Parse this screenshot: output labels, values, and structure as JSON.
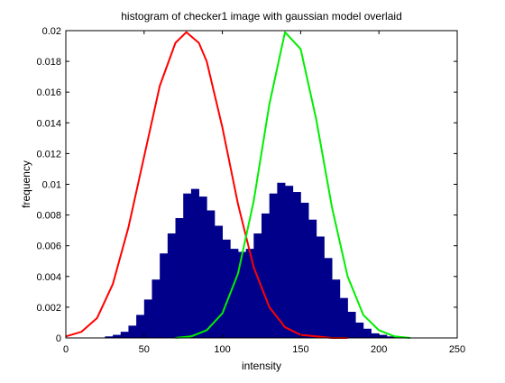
{
  "chart_data": {
    "type": "bar",
    "title": "histogram of checker1 image with gaussian model overlaid",
    "xlabel": "intensity",
    "ylabel": "frequency",
    "xlim": [
      0,
      250
    ],
    "ylim": [
      0,
      0.02
    ],
    "xticks": [
      "0",
      "50",
      "100",
      "150",
      "200",
      "250"
    ],
    "yticks": [
      "0",
      "0.002",
      "0.004",
      "0.006",
      "0.008",
      "0.01",
      "0.012",
      "0.014",
      "0.016",
      "0.018",
      "0.02"
    ],
    "grid": false,
    "legend": "none",
    "histogram": {
      "name": "",
      "color": "#00008b",
      "bins": [
        {
          "x": 0,
          "y": 0
        },
        {
          "x": 5,
          "y": 0
        },
        {
          "x": 10,
          "y": 0
        },
        {
          "x": 15,
          "y": 0
        },
        {
          "x": 20,
          "y": 0
        },
        {
          "x": 25,
          "y": 0.0001
        },
        {
          "x": 30,
          "y": 0.0002
        },
        {
          "x": 35,
          "y": 0.0004
        },
        {
          "x": 40,
          "y": 0.0008
        },
        {
          "x": 45,
          "y": 0.0015
        },
        {
          "x": 50,
          "y": 0.0025
        },
        {
          "x": 55,
          "y": 0.0038
        },
        {
          "x": 60,
          "y": 0.0055
        },
        {
          "x": 65,
          "y": 0.0068
        },
        {
          "x": 70,
          "y": 0.0078
        },
        {
          "x": 75,
          "y": 0.0094
        },
        {
          "x": 80,
          "y": 0.0097
        },
        {
          "x": 85,
          "y": 0.0092
        },
        {
          "x": 90,
          "y": 0.0083
        },
        {
          "x": 95,
          "y": 0.0073
        },
        {
          "x": 100,
          "y": 0.0064
        },
        {
          "x": 105,
          "y": 0.0058
        },
        {
          "x": 110,
          "y": 0.0056
        },
        {
          "x": 115,
          "y": 0.0058
        },
        {
          "x": 120,
          "y": 0.0068
        },
        {
          "x": 125,
          "y": 0.0081
        },
        {
          "x": 130,
          "y": 0.0094
        },
        {
          "x": 135,
          "y": 0.0101
        },
        {
          "x": 140,
          "y": 0.0099
        },
        {
          "x": 145,
          "y": 0.0095
        },
        {
          "x": 150,
          "y": 0.0088
        },
        {
          "x": 155,
          "y": 0.0077
        },
        {
          "x": 160,
          "y": 0.0066
        },
        {
          "x": 165,
          "y": 0.0052
        },
        {
          "x": 170,
          "y": 0.0038
        },
        {
          "x": 175,
          "y": 0.0026
        },
        {
          "x": 180,
          "y": 0.0017
        },
        {
          "x": 185,
          "y": 0.001
        },
        {
          "x": 190,
          "y": 0.0006
        },
        {
          "x": 195,
          "y": 0.0003
        },
        {
          "x": 200,
          "y": 0.0002
        },
        {
          "x": 205,
          "y": 0.0001
        },
        {
          "x": 210,
          "y": 5e-05
        },
        {
          "x": 215,
          "y": 0
        }
      ],
      "bin_width": 5
    },
    "series": [
      {
        "type": "line",
        "color": "#ff0000",
        "x": [
          0,
          10,
          20,
          30,
          40,
          50,
          60,
          70,
          77,
          85,
          90,
          100,
          110,
          120,
          130,
          140,
          150,
          160,
          170,
          180
        ],
        "y": [
          0.0001,
          0.0004,
          0.0013,
          0.0035,
          0.0072,
          0.0118,
          0.0164,
          0.0192,
          0.0199,
          0.0192,
          0.018,
          0.0137,
          0.0087,
          0.0046,
          0.002,
          0.0007,
          0.0002,
          0.0001,
          0,
          0
        ]
      },
      {
        "type": "line",
        "color": "#00ee00",
        "x": [
          70,
          80,
          90,
          100,
          110,
          120,
          130,
          140,
          150,
          160,
          170,
          180,
          190,
          200,
          210,
          220
        ],
        "y": [
          0,
          0.0001,
          0.0005,
          0.0016,
          0.0042,
          0.0089,
          0.0152,
          0.0199,
          0.0188,
          0.0142,
          0.0085,
          0.004,
          0.0015,
          0.0005,
          0.0001,
          0
        ]
      }
    ]
  }
}
